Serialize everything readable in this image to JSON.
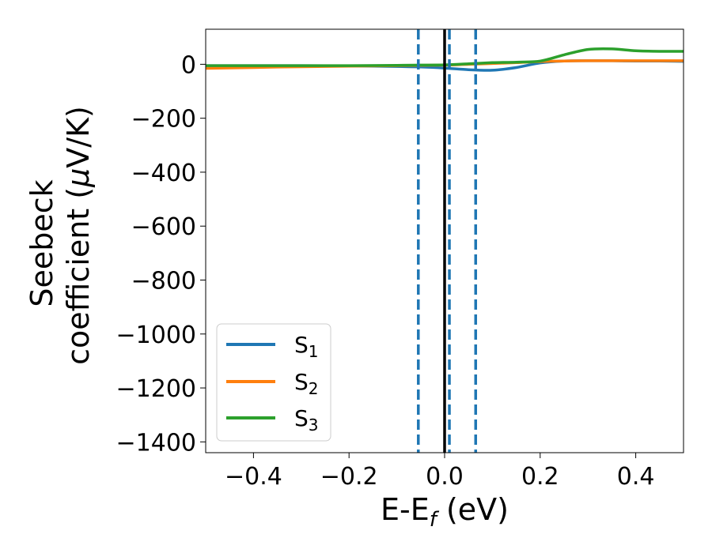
{
  "chart_data": {
    "type": "line",
    "xlabel": {
      "main": "E-E",
      "sub": "f",
      "suffix": " (eV)"
    },
    "ylabel": {
      "line1": "Seebeck",
      "line2_prefix": "coefficient  (",
      "line2_mu": "μ",
      "line2_suffix": "V/K)"
    },
    "xlim": [
      -0.5,
      0.5
    ],
    "ylim": [
      -1440,
      130
    ],
    "x_ticks": [
      -0.4,
      -0.2,
      0.0,
      0.2,
      0.4
    ],
    "x_tick_labels": [
      "−0.4",
      "−0.2",
      "0.0",
      "0.2",
      "0.4"
    ],
    "y_ticks": [
      0,
      -200,
      -400,
      -600,
      -800,
      -1000,
      -1200,
      -1400
    ],
    "y_tick_labels": [
      "0",
      "−200",
      "−400",
      "−600",
      "−800",
      "−1000",
      "−1200",
      "−1400"
    ],
    "grid": false,
    "legend_position": "lower-left",
    "x": [
      -0.5,
      -0.4,
      -0.3,
      -0.2,
      -0.1,
      -0.05,
      0.0,
      0.05,
      0.1,
      0.15,
      0.2,
      0.25,
      0.3,
      0.35,
      0.4,
      0.45,
      0.5
    ],
    "series": [
      {
        "name": "S",
        "sub": "1",
        "color": "#1f77b4",
        "values": [
          -5,
          -5,
          -5,
          -6,
          -8,
          -10,
          -14,
          -20,
          -22,
          -12,
          5,
          12,
          13,
          13,
          12,
          12,
          11
        ]
      },
      {
        "name": "S",
        "sub": "2",
        "color": "#ff7f0e",
        "values": [
          -15,
          -12,
          -9,
          -7,
          -5,
          -4,
          -3,
          0,
          3,
          6,
          10,
          12,
          13,
          13,
          13,
          13,
          13
        ]
      },
      {
        "name": "S",
        "sub": "3",
        "color": "#2ca02c",
        "values": [
          -5,
          -5,
          -5,
          -5,
          -4,
          -3,
          -2,
          2,
          6,
          8,
          12,
          35,
          55,
          57,
          50,
          48,
          48
        ]
      }
    ],
    "vlines": [
      {
        "x": -0.055,
        "style": "dashed",
        "color": "#1f77b4"
      },
      {
        "x": 0.0,
        "style": "solid",
        "color": "#000000"
      },
      {
        "x": 0.01,
        "style": "dashed",
        "color": "#1f77b4"
      },
      {
        "x": 0.065,
        "style": "dashed",
        "color": "#1f77b4"
      }
    ]
  }
}
